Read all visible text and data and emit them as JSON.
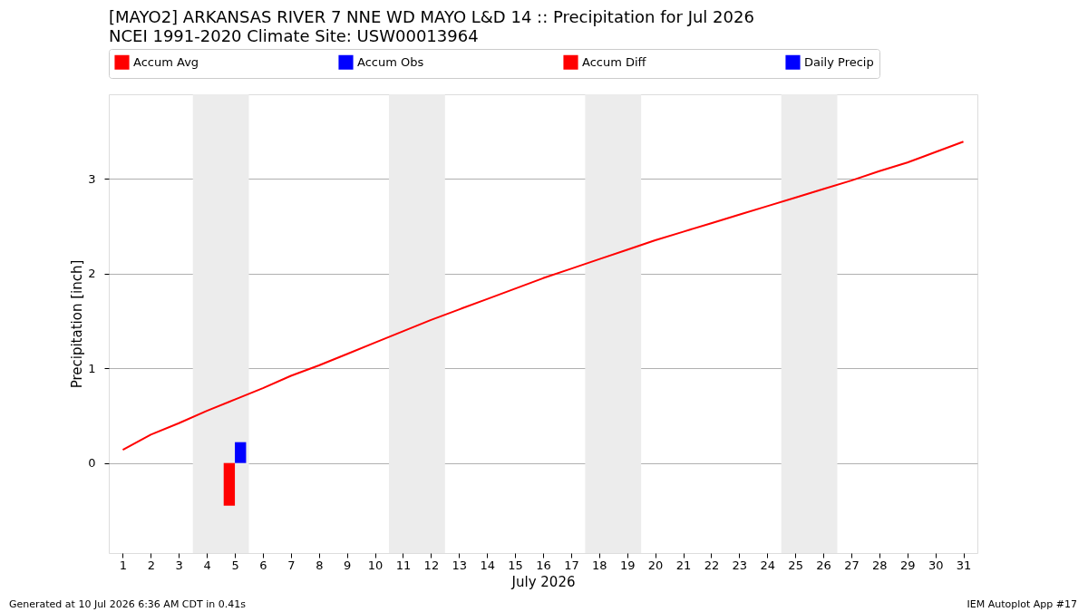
{
  "chart_data": {
    "type": "line",
    "title": "[MAYO2] ARKANSAS RIVER 7 NNE WD MAYO L&D 14 :: Precipitation for Jul 2026",
    "subtitle": "NCEI 1991-2020 Climate Site: USW00013964",
    "xlabel": "July 2026",
    "ylabel": "Precipitation [inch]",
    "x": [
      1,
      2,
      3,
      4,
      5,
      6,
      7,
      8,
      9,
      10,
      11,
      12,
      13,
      14,
      15,
      16,
      17,
      18,
      19,
      20,
      21,
      22,
      23,
      24,
      25,
      26,
      27,
      28,
      29,
      30,
      31
    ],
    "series": [
      {
        "name": "Accum Avg",
        "color": "#ff0000",
        "values": [
          0.14,
          0.3,
          0.42,
          0.55,
          0.67,
          0.79,
          0.92,
          1.03,
          1.15,
          1.27,
          1.39,
          1.51,
          1.62,
          1.73,
          1.84,
          1.95,
          2.05,
          2.15,
          2.25,
          2.35,
          2.44,
          2.53,
          2.62,
          2.71,
          2.8,
          2.89,
          2.98,
          3.08,
          3.17,
          3.28,
          3.39
        ]
      },
      {
        "name": "Accum Obs",
        "color": "#0000ff",
        "values": [
          null,
          null,
          null,
          null,
          null,
          null,
          null,
          null,
          null,
          null,
          null,
          null,
          null,
          null,
          null,
          null,
          null,
          null,
          null,
          null,
          null,
          null,
          null,
          null,
          null,
          null,
          null,
          null,
          null,
          null,
          null
        ]
      },
      {
        "name": "Accum Diff",
        "type": "bar",
        "color": "#ff0000",
        "x": [
          5
        ],
        "values": [
          -0.45
        ]
      },
      {
        "name": "Daily Precip",
        "type": "bar",
        "color": "#0000ff",
        "x": [
          5
        ],
        "values": [
          0.22
        ]
      }
    ],
    "xlim": [
      0.5,
      31.5
    ],
    "ylim": [
      -0.95,
      3.89
    ],
    "xticks": [
      1,
      2,
      3,
      4,
      5,
      6,
      7,
      8,
      9,
      10,
      11,
      12,
      13,
      14,
      15,
      16,
      17,
      18,
      19,
      20,
      21,
      22,
      23,
      24,
      25,
      26,
      27,
      28,
      29,
      30,
      31
    ],
    "yticks": [
      0,
      1,
      2,
      3
    ],
    "bands": [
      {
        "axis": "x",
        "from": 3.5,
        "to": 5.5,
        "color": "#ececec"
      },
      {
        "axis": "x",
        "from": 10.5,
        "to": 12.5,
        "color": "#ececec"
      },
      {
        "axis": "x",
        "from": 17.5,
        "to": 19.5,
        "color": "#ececec"
      },
      {
        "axis": "x",
        "from": 24.5,
        "to": 26.5,
        "color": "#ececec"
      }
    ],
    "grid": "y",
    "legend": "top",
    "annotations": [
      "Generated at 10 Jul 2026 6:36 AM CDT in 0.41s",
      "IEM Autoplot App #17"
    ]
  }
}
